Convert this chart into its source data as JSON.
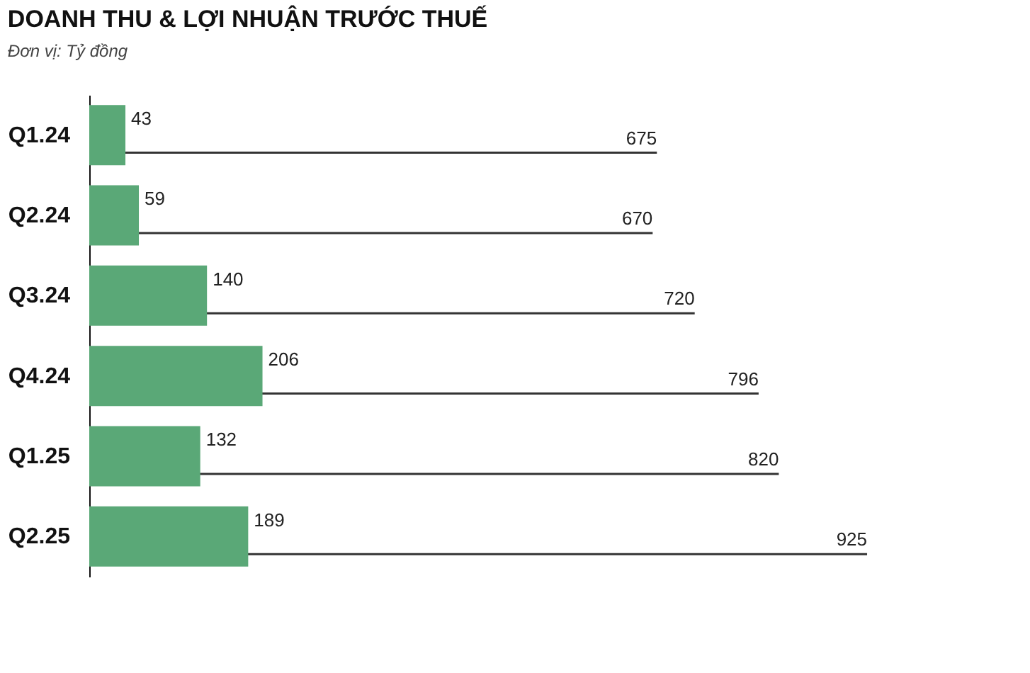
{
  "chart_data": {
    "type": "bar",
    "orientation": "horizontal",
    "title": "DOANH THU & LỢI NHUẬN TRƯỚC THUẾ",
    "subtitle": "Đơn vị: Tỷ đồng",
    "categories": [
      "Q1.24",
      "Q2.24",
      "Q3.24",
      "Q4.24",
      "Q1.25",
      "Q2.25"
    ],
    "series": [
      {
        "color": "#333333",
        "values": [
          675,
          670,
          720,
          796,
          820,
          925
        ]
      },
      {
        "color": "#5aa877",
        "values": [
          43,
          59,
          140,
          206,
          132,
          189
        ]
      }
    ],
    "data_labels": true,
    "grid": false
  }
}
